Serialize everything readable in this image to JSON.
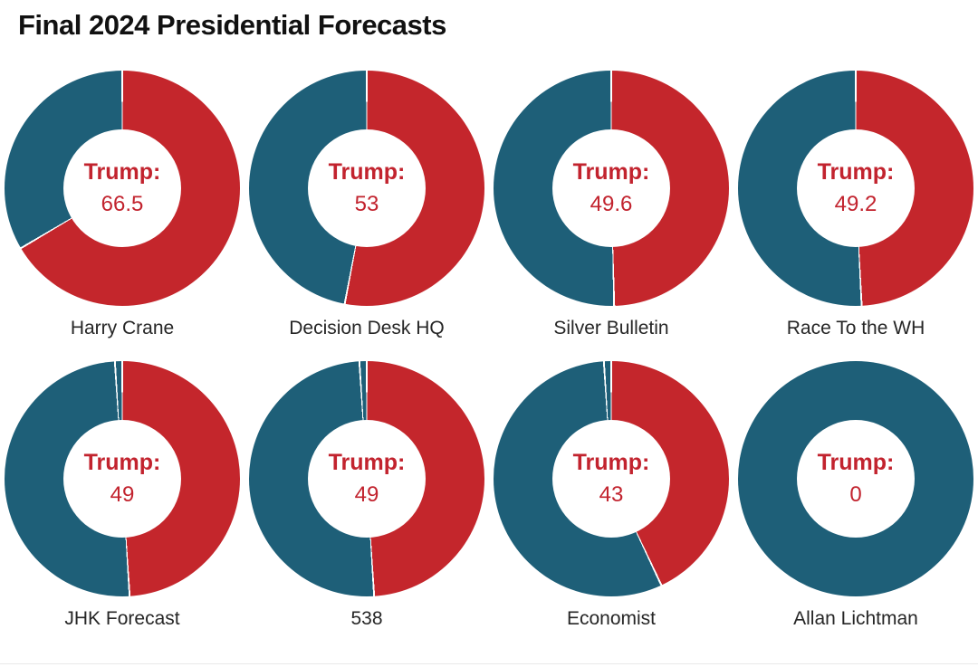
{
  "title": "Final 2024 Presidential Forecasts",
  "colors": {
    "trump_red": "#C4262C",
    "harris_teal": "#1E5F78",
    "gap_white": "#FFFFFF",
    "text_red": "#C2232E",
    "label_dark": "#262626"
  },
  "center_label_prefix": "Trump:",
  "chart_data": {
    "type": "pie",
    "subtype": "donut-grid",
    "rows": 2,
    "columns": 4,
    "title": "Final 2024 Presidential Forecasts",
    "legend_position": "none",
    "grid": false,
    "value_meaning": "Trump win chance shown in donut center; red slice = Trump share, teal slice = remainder",
    "charts": [
      {
        "label": "Harry Crane",
        "trump": 66.5,
        "trump_display": "66.5",
        "segments": [
          {
            "party": "trump",
            "value": 66.5
          },
          {
            "party": "harris",
            "value": 33.5
          }
        ]
      },
      {
        "label": "Decision Desk HQ",
        "trump": 53,
        "trump_display": "53",
        "segments": [
          {
            "party": "trump",
            "value": 53
          },
          {
            "party": "harris",
            "value": 47
          }
        ]
      },
      {
        "label": "Silver Bulletin",
        "trump": 49.6,
        "trump_display": "49.6",
        "segments": [
          {
            "party": "trump",
            "value": 49.6
          },
          {
            "party": "harris",
            "value": 50.4
          }
        ]
      },
      {
        "label": "Race To the WH",
        "trump": 49.2,
        "trump_display": "49.2",
        "segments": [
          {
            "party": "trump",
            "value": 49.2
          },
          {
            "party": "harris",
            "value": 50.8
          }
        ]
      },
      {
        "label": "JHK Forecast",
        "trump": 49,
        "trump_display": "49",
        "segments": [
          {
            "party": "trump",
            "value": 49
          },
          {
            "party": "harris",
            "value": 50
          },
          {
            "party": "other",
            "value": 1
          }
        ]
      },
      {
        "label": "538",
        "trump": 49,
        "trump_display": "49",
        "segments": [
          {
            "party": "trump",
            "value": 49
          },
          {
            "party": "harris",
            "value": 50
          },
          {
            "party": "other",
            "value": 1
          }
        ]
      },
      {
        "label": "Economist",
        "trump": 43,
        "trump_display": "43",
        "segments": [
          {
            "party": "trump",
            "value": 43
          },
          {
            "party": "harris",
            "value": 56
          },
          {
            "party": "other",
            "value": 1
          }
        ]
      },
      {
        "label": "Allan Lichtman",
        "trump": 0,
        "trump_display": "0",
        "segments": [
          {
            "party": "harris",
            "value": 100
          }
        ]
      }
    ]
  }
}
